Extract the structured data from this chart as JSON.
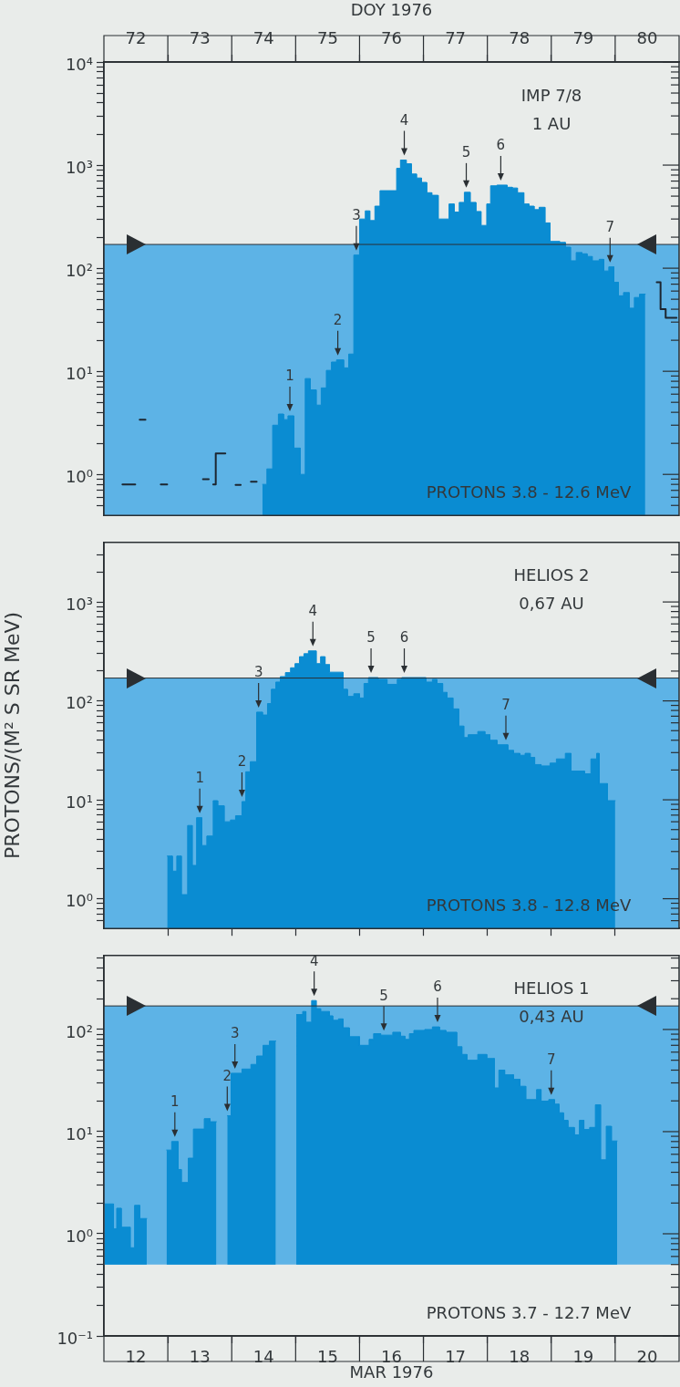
{
  "chart_data": [
    {
      "type": "area",
      "log": true,
      "xlim": [
        72,
        81
      ],
      "xlabel": "DOY 1976",
      "xticks": [
        {
          "value": 72.5,
          "label": "72"
        },
        {
          "value": 73,
          "label": null
        },
        {
          "value": 73.5,
          "label": "73"
        },
        {
          "value": 74,
          "label": null
        },
        {
          "value": 74.5,
          "label": "74"
        },
        {
          "value": 75,
          "label": null
        },
        {
          "value": 75.5,
          "label": "75"
        },
        {
          "value": 76,
          "label": null
        },
        {
          "value": 76.5,
          "label": "76"
        },
        {
          "value": 77,
          "label": null
        },
        {
          "value": 77.5,
          "label": "77"
        },
        {
          "value": 78,
          "label": null
        },
        {
          "value": 78.5,
          "label": "78"
        },
        {
          "value": 79,
          "label": null
        },
        {
          "value": 79.5,
          "label": "79"
        },
        {
          "value": 80,
          "label": null
        },
        {
          "value": 80.5,
          "label": "80"
        }
      ],
      "ylim": [
        0.4,
        10000
      ],
      "yticks": [
        {
          "value": 0.5,
          "label": null
        },
        {
          "value": 0.6,
          "label": null
        },
        {
          "value": 0.7,
          "label": null
        },
        {
          "value": 0.8,
          "label": null
        },
        {
          "value": 0.9,
          "label": null
        },
        {
          "value": 1,
          "label": "10⁰"
        },
        {
          "value": 2,
          "label": null
        },
        {
          "value": 3,
          "label": null
        },
        {
          "value": 4,
          "label": null
        },
        {
          "value": 5,
          "label": null
        },
        {
          "value": 6,
          "label": null
        },
        {
          "value": 7,
          "label": null
        },
        {
          "value": 8,
          "label": null
        },
        {
          "value": 9,
          "label": null
        },
        {
          "value": 10,
          "label": "10¹"
        },
        {
          "value": 20,
          "label": null
        },
        {
          "value": 30,
          "label": null
        },
        {
          "value": 40,
          "label": null
        },
        {
          "value": 50,
          "label": null
        },
        {
          "value": 60,
          "label": null
        },
        {
          "value": 70,
          "label": null
        },
        {
          "value": 80,
          "label": null
        },
        {
          "value": 90,
          "label": null
        },
        {
          "value": 100,
          "label": "10²"
        },
        {
          "value": 200,
          "label": null
        },
        {
          "value": 300,
          "label": null
        },
        {
          "value": 400,
          "label": null
        },
        {
          "value": 500,
          "label": null
        },
        {
          "value": 600,
          "label": null
        },
        {
          "value": 700,
          "label": null
        },
        {
          "value": 800,
          "label": null
        },
        {
          "value": 900,
          "label": null
        },
        {
          "value": 1000,
          "label": "10³"
        },
        {
          "value": 2000,
          "label": null
        },
        {
          "value": 3000,
          "label": null
        },
        {
          "value": 4000,
          "label": null
        },
        {
          "value": 5000,
          "label": null
        },
        {
          "value": 6000,
          "label": null
        },
        {
          "value": 7000,
          "label": null
        },
        {
          "value": 8000,
          "label": null
        },
        {
          "value": 9000,
          "label": null
        },
        {
          "value": 10000,
          "label": "10⁴"
        }
      ],
      "bands": [
        {
          "axis": "y",
          "from": 0.4,
          "to": 170,
          "color": "#5db3e6"
        }
      ],
      "ref_lines": [
        {
          "axis": "y",
          "value": 170,
          "color": "#2a2f33"
        }
      ],
      "annotations": [
        "IMP 7/8",
        "1 AU",
        "PROTONS 3.8 - 12.6 MeV",
        {
          "text": "1",
          "x": 74.91,
          "y": 3.7
        },
        {
          "text": "2",
          "x": 75.66,
          "y": 12.9
        },
        {
          "text": "3",
          "x": 75.95,
          "y": 134
        },
        {
          "text": "4",
          "x": 76.7,
          "y": 1120
        },
        {
          "text": "5",
          "x": 77.67,
          "y": 545
        },
        {
          "text": "6",
          "x": 78.21,
          "y": 640
        },
        {
          "text": "7",
          "x": 79.92,
          "y": 103
        }
      ],
      "series": [
        {
          "type": "step",
          "color": "#1c2630",
          "x": [
            72.29,
            72.49
          ],
          "values": [
            0.8,
            0.8
          ]
        },
        {
          "type": "step",
          "color": "#1c2630",
          "x": [
            72.56,
            72.65
          ],
          "values": [
            3.4,
            3.4
          ]
        },
        {
          "type": "step",
          "color": "#1c2630",
          "x": [
            72.89,
            72.99
          ],
          "values": [
            0.8,
            0.8
          ]
        },
        {
          "type": "step",
          "color": "#1c2630",
          "x": [
            73.55,
            73.64
          ],
          "values": [
            0.9,
            0.9
          ]
        },
        {
          "type": "step",
          "color": "#1c2630",
          "x": [
            73.71,
            73.75,
            73.9
          ],
          "values": [
            0.8,
            1.6,
            1.6
          ]
        },
        {
          "type": "step",
          "color": "#1c2630",
          "x": [
            74.06,
            74.14
          ],
          "values": [
            0.79,
            0.79
          ]
        },
        {
          "type": "step",
          "color": "#1c2630",
          "x": [
            74.3,
            74.39
          ],
          "values": [
            0.85,
            0.85
          ]
        },
        {
          "type": "step",
          "color": "#1c2630",
          "x": [
            80.65,
            80.71,
            80.79,
            80.96
          ],
          "values": [
            73,
            40,
            33,
            33
          ]
        },
        {
          "color": "#0a8cd2",
          "x": [
            74.48,
            74.55,
            74.55,
            74.64,
            74.64,
            74.73,
            74.73,
            74.81,
            74.81,
            74.88,
            74.88,
            74.97,
            74.97,
            75.07,
            75.07,
            75.15,
            75.15,
            75.23,
            75.23,
            75.32,
            75.32,
            75.4,
            75.4,
            75.48,
            75.48,
            75.56,
            75.56,
            75.64,
            75.64,
            75.75,
            75.75,
            75.83,
            75.83,
            75.91,
            75.91,
            76,
            76,
            76.09,
            76.09,
            76.16,
            76.16,
            76.24,
            76.24,
            76.32,
            76.32,
            76.58,
            76.58,
            76.64,
            76.64,
            76.73,
            76.73,
            76.81,
            76.81,
            76.89,
            76.89,
            76.97,
            76.97,
            77.05,
            77.05,
            77.13,
            77.13,
            77.23,
            77.23,
            77.4,
            77.4,
            77.48,
            77.48,
            77.56,
            77.56,
            77.64,
            77.64,
            77.73,
            77.73,
            77.82,
            77.82,
            77.9,
            77.9,
            77.99,
            77.99,
            78.05,
            78.05,
            78.15,
            78.15,
            78.31,
            78.31,
            78.39,
            78.39,
            78.47,
            78.47,
            78.57,
            78.57,
            78.65,
            78.65,
            78.73,
            78.73,
            78.81,
            78.81,
            78.9,
            78.9,
            78.98,
            78.98,
            79.13,
            79.13,
            79.22,
            79.22,
            79.3,
            79.3,
            79.39,
            79.39,
            79.48,
            79.48,
            79.56,
            79.56,
            79.64,
            79.64,
            79.75,
            79.75,
            79.82,
            79.82,
            79.9,
            79.9,
            79.98,
            79.98,
            80.05,
            80.05,
            80.13,
            80.13,
            80.22,
            80.22,
            80.3,
            80.3,
            80.38,
            80.38,
            80.47
          ],
          "values": [
            0.8,
            0.8,
            1.13,
            1.13,
            3,
            3,
            3.85,
            3.85,
            3.4,
            3.4,
            3.7,
            3.7,
            1.8,
            1.8,
            1,
            1,
            8.5,
            8.5,
            6.6,
            6.6,
            4.7,
            4.7,
            6.9,
            6.9,
            10.2,
            10.2,
            12.3,
            12.3,
            12.9,
            12.9,
            10.8,
            10.8,
            14.7,
            14.7,
            134,
            134,
            300,
            300,
            360,
            360,
            290,
            290,
            400,
            400,
            565,
            565,
            930,
            930,
            1120,
            1120,
            1030,
            1030,
            820,
            820,
            750,
            750,
            680,
            680,
            540,
            540,
            510,
            510,
            300,
            300,
            420,
            420,
            350,
            350,
            435,
            435,
            545,
            545,
            435,
            435,
            355,
            355,
            260,
            260,
            420,
            420,
            630,
            630,
            640,
            640,
            610,
            610,
            600,
            600,
            540,
            540,
            420,
            420,
            400,
            400,
            370,
            370,
            390,
            390,
            275,
            275,
            182,
            182,
            178,
            178,
            160,
            160,
            118,
            118,
            142,
            142,
            138,
            138,
            130,
            130,
            118,
            118,
            122,
            122,
            94,
            94,
            103,
            103,
            73,
            73,
            54,
            54,
            58,
            58,
            41,
            41,
            52,
            52,
            56,
            56
          ]
        }
      ]
    },
    {
      "type": "area",
      "log": true,
      "xlim": [
        12,
        21
      ],
      "ylabel": "PROTONS/(M² S SR MeV)",
      "tick_labels": "y",
      "xticks": [
        {
          "value": 13,
          "label": null
        },
        {
          "value": 14,
          "label": null
        },
        {
          "value": 15,
          "label": null
        },
        {
          "value": 16,
          "label": null
        },
        {
          "value": 17,
          "label": null
        },
        {
          "value": 18,
          "label": null
        },
        {
          "value": 19,
          "label": null
        },
        {
          "value": 20,
          "label": null
        }
      ],
      "ylim": [
        0.5,
        4000
      ],
      "yticks": [
        {
          "value": 0.6,
          "label": null
        },
        {
          "value": 0.7,
          "label": null
        },
        {
          "value": 0.8,
          "label": null
        },
        {
          "value": 0.9,
          "label": null
        },
        {
          "value": 1,
          "label": "10⁰"
        },
        {
          "value": 2,
          "label": null
        },
        {
          "value": 3,
          "label": null
        },
        {
          "value": 4,
          "label": null
        },
        {
          "value": 5,
          "label": null
        },
        {
          "value": 6,
          "label": null
        },
        {
          "value": 7,
          "label": null
        },
        {
          "value": 8,
          "label": null
        },
        {
          "value": 9,
          "label": null
        },
        {
          "value": 10,
          "label": "10¹"
        },
        {
          "value": 20,
          "label": null
        },
        {
          "value": 30,
          "label": null
        },
        {
          "value": 40,
          "label": null
        },
        {
          "value": 50,
          "label": null
        },
        {
          "value": 60,
          "label": null
        },
        {
          "value": 70,
          "label": null
        },
        {
          "value": 80,
          "label": null
        },
        {
          "value": 90,
          "label": null
        },
        {
          "value": 100,
          "label": "10²"
        },
        {
          "value": 200,
          "label": null
        },
        {
          "value": 300,
          "label": null
        },
        {
          "value": 400,
          "label": null
        },
        {
          "value": 500,
          "label": null
        },
        {
          "value": 600,
          "label": null
        },
        {
          "value": 700,
          "label": null
        },
        {
          "value": 800,
          "label": null
        },
        {
          "value": 900,
          "label": null
        },
        {
          "value": 1000,
          "label": "10³"
        },
        {
          "value": 2000,
          "label": null
        },
        {
          "value": 3000,
          "label": null
        }
      ],
      "bands": [
        {
          "axis": "y",
          "from": 0.5,
          "to": 170,
          "color": "#5db3e6"
        }
      ],
      "ref_lines": [
        {
          "axis": "y",
          "value": 170,
          "color": "#2a2f33"
        }
      ],
      "annotations": [
        "HELIOS 2",
        "0,67 AU",
        "PROTONS 3.8 - 12.8 MeV",
        {
          "text": "1",
          "x": 13.5,
          "y": 6.6
        },
        {
          "text": "2",
          "x": 14.16,
          "y": 9.6
        },
        {
          "text": "3",
          "x": 14.42,
          "y": 77
        },
        {
          "text": "4",
          "x": 15.27,
          "y": 320
        },
        {
          "text": "5",
          "x": 16.18,
          "y": 172
        },
        {
          "text": "6",
          "x": 16.7,
          "y": 172
        },
        {
          "text": "7",
          "x": 18.29,
          "y": 36
        }
      ],
      "series": [
        {
          "color": "#0a8cd2",
          "x": [
            12.99,
            13.07,
            13.07,
            13.14,
            13.14,
            13.21,
            13.21,
            13.31,
            13.31,
            13.38,
            13.38,
            13.45,
            13.45,
            13.53,
            13.53,
            13.61,
            13.61,
            13.71,
            13.71,
            13.78,
            13.78,
            13.88,
            13.88,
            13.98,
            13.98,
            14.06,
            14.06,
            14.16,
            14.16,
            14.22,
            14.22,
            14.29,
            14.29,
            14.39,
            14.39,
            14.48,
            14.48,
            14.56,
            14.56,
            14.62,
            14.62,
            14.69,
            14.69,
            14.76,
            14.76,
            14.84,
            14.84,
            14.92,
            14.92,
            14.99,
            14.99,
            15.06,
            15.06,
            15.13,
            15.13,
            15.2,
            15.2,
            15.32,
            15.32,
            15.39,
            15.39,
            15.46,
            15.46,
            15.53,
            15.53,
            15.74,
            15.74,
            15.81,
            15.81,
            15.91,
            15.91,
            16,
            16,
            16.07,
            16.07,
            16.14,
            16.14,
            16.29,
            16.29,
            16.43,
            16.43,
            16.59,
            16.59,
            16.66,
            16.66,
            17.04,
            17.04,
            17.14,
            17.14,
            17.21,
            17.21,
            17.3,
            17.3,
            17.37,
            17.37,
            17.46,
            17.46,
            17.55,
            17.55,
            17.63,
            17.63,
            17.7,
            17.7,
            17.85,
            17.85,
            17.96,
            17.96,
            18.04,
            18.04,
            18.15,
            18.15,
            18.32,
            18.32,
            18.41,
            18.41,
            18.51,
            18.51,
            18.59,
            18.59,
            18.67,
            18.67,
            18.74,
            18.74,
            18.84,
            18.84,
            18.98,
            18.98,
            19.08,
            19.08,
            19.22,
            19.22,
            19.31,
            19.31,
            19.52,
            19.52,
            19.62,
            19.62,
            19.71,
            19.71,
            19.75,
            19.75,
            19.88,
            19.88,
            20
          ],
          "values": [
            2.7,
            2.7,
            1.9,
            1.9,
            2.7,
            2.7,
            1.1,
            1.1,
            5.5,
            5.5,
            2.17,
            2.17,
            6.6,
            6.6,
            3.45,
            3.45,
            4.3,
            4.3,
            9.8,
            9.8,
            8.7,
            8.7,
            6,
            6,
            6.25,
            6.25,
            6.9,
            6.9,
            9.6,
            9.6,
            19.2,
            19.2,
            24.3,
            24.3,
            77,
            77,
            72,
            72,
            94,
            94,
            131,
            131,
            155,
            155,
            176,
            176,
            193,
            193,
            216,
            216,
            238,
            238,
            280,
            280,
            300,
            300,
            320,
            320,
            238,
            238,
            280,
            280,
            233,
            233,
            195,
            195,
            131,
            131,
            111,
            111,
            118,
            118,
            107,
            107,
            150,
            150,
            172,
            172,
            165,
            165,
            147,
            147,
            165,
            165,
            172,
            172,
            155,
            155,
            165,
            165,
            150,
            150,
            122,
            122,
            107,
            107,
            83,
            83,
            55.7,
            55.7,
            42.6,
            42.6,
            45.5,
            45.5,
            49,
            49,
            45.5,
            45.5,
            40,
            40,
            36,
            36,
            31.6,
            31.6,
            29.5,
            29.5,
            28.2,
            28.2,
            29.5,
            29.5,
            26.8,
            26.8,
            22.7,
            22.7,
            22,
            22,
            23.5,
            23.5,
            25.9,
            25.9,
            29.5,
            29.5,
            19.5,
            19.5,
            18.3,
            18.3,
            25.9,
            25.9,
            29.5,
            29.5,
            14.6,
            14.6,
            9.8,
            9.8
          ]
        }
      ]
    },
    {
      "type": "area",
      "log": true,
      "xlim": [
        12,
        21
      ],
      "xlabel": "MAR 1976",
      "xticks": [
        {
          "value": 12.5,
          "label": "12"
        },
        {
          "value": 13,
          "label": null
        },
        {
          "value": 13.5,
          "label": "13"
        },
        {
          "value": 14,
          "label": null
        },
        {
          "value": 14.5,
          "label": "14"
        },
        {
          "value": 15,
          "label": null
        },
        {
          "value": 15.5,
          "label": "15"
        },
        {
          "value": 16,
          "label": null
        },
        {
          "value": 16.5,
          "label": "16"
        },
        {
          "value": 17,
          "label": null
        },
        {
          "value": 17.5,
          "label": "17"
        },
        {
          "value": 18,
          "label": null
        },
        {
          "value": 18.5,
          "label": "18"
        },
        {
          "value": 19,
          "label": null
        },
        {
          "value": 19.5,
          "label": "19"
        },
        {
          "value": 20,
          "label": null
        },
        {
          "value": 20.5,
          "label": "20"
        }
      ],
      "ylim": [
        0.1,
        530
      ],
      "yticks": [
        {
          "value": 0.1,
          "label": "10⁻¹"
        },
        {
          "value": 0.2,
          "label": null
        },
        {
          "value": 0.3,
          "label": null
        },
        {
          "value": 0.4,
          "label": null
        },
        {
          "value": 0.5,
          "label": null
        },
        {
          "value": 0.6,
          "label": null
        },
        {
          "value": 0.7,
          "label": null
        },
        {
          "value": 0.8,
          "label": null
        },
        {
          "value": 0.9,
          "label": null
        },
        {
          "value": 1,
          "label": "10⁰"
        },
        {
          "value": 2,
          "label": null
        },
        {
          "value": 3,
          "label": null
        },
        {
          "value": 4,
          "label": null
        },
        {
          "value": 5,
          "label": null
        },
        {
          "value": 6,
          "label": null
        },
        {
          "value": 7,
          "label": null
        },
        {
          "value": 8,
          "label": null
        },
        {
          "value": 9,
          "label": null
        },
        {
          "value": 10,
          "label": "10¹"
        },
        {
          "value": 20,
          "label": null
        },
        {
          "value": 30,
          "label": null
        },
        {
          "value": 40,
          "label": null
        },
        {
          "value": 50,
          "label": null
        },
        {
          "value": 60,
          "label": null
        },
        {
          "value": 70,
          "label": null
        },
        {
          "value": 80,
          "label": null
        },
        {
          "value": 90,
          "label": null
        },
        {
          "value": 100,
          "label": "10²"
        },
        {
          "value": 200,
          "label": null
        },
        {
          "value": 300,
          "label": null
        },
        {
          "value": 400,
          "label": null
        },
        {
          "value": 500,
          "label": null
        }
      ],
      "bands": [
        {
          "axis": "y",
          "from": 0.5,
          "to": 170,
          "color": "#5db3e6"
        }
      ],
      "ref_lines": [
        {
          "axis": "y",
          "value": 170,
          "color": "#2a2f33"
        }
      ],
      "annotations": [
        "HELIOS 1",
        "0,43 AU",
        "PROTONS 3.7 - 12.7 MeV",
        {
          "text": "1",
          "x": 13.11,
          "y": 8
        },
        {
          "text": "2",
          "x": 13.93,
          "y": 14.3
        },
        {
          "text": "3",
          "x": 14.05,
          "y": 37.3
        },
        {
          "text": "4",
          "x": 15.29,
          "y": 192
        },
        {
          "text": "5",
          "x": 16.38,
          "y": 88
        },
        {
          "text": "6",
          "x": 17.22,
          "y": 106
        },
        {
          "text": "7",
          "x": 19,
          "y": 20.6
        }
      ],
      "series": [
        {
          "color": "#0a8cd2",
          "x": [
            12.01,
            12.15,
            12.15,
            12.2,
            12.2,
            12.27,
            12.27,
            12.41,
            12.41,
            12.48,
            12.48,
            12.56,
            12.56,
            12.67
          ],
          "values": [
            1.96,
            1.96,
            1.12,
            1.12,
            1.78,
            1.78,
            1.16,
            1.16,
            0.73,
            0.73,
            1.9,
            1.9,
            1.41,
            1.41
          ]
        },
        {
          "color": "#0a8cd2",
          "x": [
            12.98,
            13.06,
            13.06,
            13.16,
            13.16,
            13.21,
            13.21,
            13.32,
            13.32,
            13.4,
            13.4,
            13.57,
            13.57,
            13.66,
            13.66,
            13.76
          ],
          "values": [
            6.6,
            6.6,
            8,
            8,
            4.26,
            4.26,
            3.18,
            3.18,
            5.5,
            5.5,
            10.6,
            10.6,
            13.4,
            13.4,
            12.5,
            12.5
          ]
        },
        {
          "color": "#0a8cd2",
          "x": [
            13.93,
            13.99,
            13.99,
            14.16,
            14.16,
            14.3,
            14.3,
            14.39,
            14.39,
            14.49,
            14.49,
            14.59,
            14.59,
            14.69
          ],
          "values": [
            14.3,
            14.3,
            37.3,
            37.3,
            41,
            41,
            45.5,
            45.5,
            55,
            55,
            70,
            70,
            77,
            77
          ]
        },
        {
          "color": "#0a8cd2",
          "x": [
            15.01,
            15.11,
            15.11,
            15.16,
            15.16,
            15.25,
            15.25,
            15.32,
            15.32,
            15.39,
            15.39,
            15.53,
            15.53,
            15.58,
            15.58,
            15.67,
            15.67,
            15.74,
            15.74,
            15.84,
            15.84,
            16,
            16,
            16.15,
            16.15,
            16.22,
            16.22,
            16.33,
            16.33,
            16.52,
            16.52,
            16.64,
            16.64,
            16.71,
            16.71,
            16.78,
            16.78,
            16.85,
            16.85,
            17.02,
            17.02,
            17.14,
            17.14,
            17.25,
            17.25,
            17.35,
            17.35,
            17.52,
            17.52,
            17.6,
            17.6,
            17.68,
            17.68,
            17.85,
            17.85,
            17.99,
            17.99,
            18.11,
            18.11,
            18.18,
            18.18,
            18.27,
            18.27,
            18.41,
            18.41,
            18.51,
            18.51,
            18.6,
            18.6,
            18.77,
            18.77,
            18.84,
            18.84,
            18.96,
            18.96,
            19.05,
            19.05,
            19.12,
            19.12,
            19.19,
            19.19,
            19.26,
            19.26,
            19.36,
            19.36,
            19.44,
            19.44,
            19.51,
            19.51,
            19.6,
            19.6,
            19.69,
            19.69,
            19.77,
            19.77,
            19.86,
            19.86,
            19.94,
            19.94,
            20.03
          ],
          "values": [
            140,
            140,
            150,
            150,
            118,
            118,
            192,
            192,
            160,
            160,
            150,
            150,
            136,
            136,
            123,
            123,
            127,
            127,
            104,
            104,
            85,
            85,
            70,
            70,
            80,
            80,
            91,
            91,
            88,
            88,
            94,
            94,
            86,
            86,
            80,
            80,
            91,
            91,
            98,
            98,
            100,
            100,
            106,
            106,
            98,
            98,
            94,
            94,
            67.8,
            67.8,
            57,
            57,
            50,
            50,
            57,
            57,
            52,
            52,
            26.8,
            26.8,
            40,
            40,
            36,
            36,
            32.5,
            32.5,
            27.8,
            27.8,
            20.6,
            20.6,
            25.8,
            25.8,
            19.9,
            19.9,
            20.6,
            20.6,
            18.6,
            18.6,
            15.3,
            15.3,
            12.9,
            12.9,
            11,
            11,
            9.3,
            9.3,
            12.9,
            12.9,
            10.5,
            10.5,
            11,
            11,
            18.3,
            18.3,
            5.3,
            5.3,
            11.3,
            11.3,
            8.1,
            8.1
          ]
        }
      ]
    }
  ]
}
